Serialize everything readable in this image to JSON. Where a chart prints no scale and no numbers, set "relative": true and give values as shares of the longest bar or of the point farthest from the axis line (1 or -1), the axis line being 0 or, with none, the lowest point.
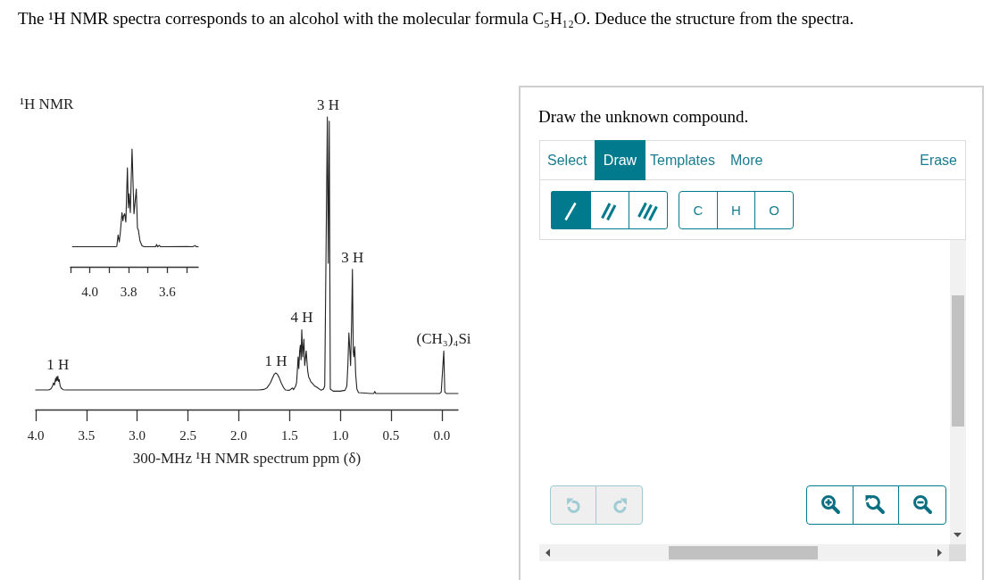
{
  "chart_data": [
    {
      "type": "line",
      "title": "¹H NMR",
      "xlabel": "300-MHz ¹H NMR spectrum ppm (δ)",
      "relative": true,
      "color": "#222222",
      "marker": "none",
      "grid": false,
      "xlim": [
        4.0,
        -0.16
      ],
      "xticks": [
        {
          "value": 4,
          "label": "4.0"
        },
        {
          "value": 3.5,
          "label": "3.5"
        },
        {
          "value": 3,
          "label": "3.0"
        },
        {
          "value": 2.5,
          "label": "2.5"
        },
        {
          "value": 2,
          "label": "2.0"
        },
        {
          "value": 1.5,
          "label": "1.5"
        },
        {
          "value": 1,
          "label": "1.0"
        },
        {
          "value": 0.5,
          "label": "0.5"
        },
        {
          "value": 0,
          "label": "0.0"
        }
      ],
      "x": [
        4.0,
        3.87,
        3.85,
        3.835,
        3.825,
        3.815,
        3.805,
        3.8,
        3.795,
        3.788,
        3.782,
        3.775,
        3.768,
        3.76,
        3.75,
        3.73,
        3.7,
        1.8,
        1.75,
        1.72,
        1.69,
        1.665,
        1.65,
        1.635,
        1.62,
        1.6,
        1.58,
        1.56,
        1.54,
        1.5,
        1.47,
        1.46,
        1.44,
        1.43,
        1.425,
        1.415,
        1.408,
        1.4,
        1.393,
        1.386,
        1.379,
        1.37,
        1.358,
        1.35,
        1.335,
        1.325,
        1.32,
        1.31,
        1.3,
        1.29,
        1.276,
        1.25,
        1.23,
        1.188,
        1.165,
        1.153,
        1.127,
        1.118,
        1.108,
        1.098,
        1.07,
        1.0,
        0.953,
        0.935,
        0.925,
        0.915,
        0.905,
        0.898,
        0.888,
        0.88,
        0.872,
        0.866,
        0.857,
        0.848,
        0.836,
        0.82,
        0.7,
        0.67,
        0.66,
        0.65,
        0.02,
        0.005,
        -0.02,
        -0.03,
        -0.045,
        -0.16
      ],
      "values": [
        0.067,
        0.067,
        0.071,
        0.08,
        0.091,
        0.084,
        0.106,
        0.097,
        0.112,
        0.099,
        0.114,
        0.096,
        0.102,
        0.082,
        0.074,
        0.068,
        0.067,
        0.067,
        0.069,
        0.075,
        0.09,
        0.11,
        0.121,
        0.125,
        0.121,
        0.108,
        0.09,
        0.076,
        0.067,
        0.066,
        0.074,
        0.068,
        0.08,
        0.092,
        0.12,
        0.18,
        0.14,
        0.2,
        0.22,
        0.17,
        0.273,
        0.18,
        0.241,
        0.15,
        0.2,
        0.15,
        0.13,
        0.11,
        0.104,
        0.095,
        0.09,
        0.08,
        0.076,
        0.066,
        0.07,
        0.08,
        1.0,
        0.5,
        0.985,
        0.07,
        0.063,
        0.063,
        0.066,
        0.08,
        0.15,
        0.262,
        0.2,
        0.15,
        0.3,
        0.479,
        0.2,
        0.18,
        0.215,
        0.12,
        0.07,
        0.058,
        0.055,
        0.055,
        0.062,
        0.055,
        0.055,
        0.06,
        0.2,
        0.06,
        0.055,
        0.055
      ],
      "annotations": [
        "The ¹H NMR spectra corresponds to an alcohol with the molecular formula C₅H₁₂O. Deduce the structure from the spectra.",
        {
          "text": "1 H",
          "x": 3.782,
          "y": 0.114
        },
        {
          "text": "1 H",
          "x": 1.635,
          "y": 0.125
        },
        {
          "text": "4 H",
          "x": 1.379,
          "y": 0.273
        },
        {
          "text": "3 H",
          "x": 1.12,
          "y": 1.0
        },
        {
          "text": "3 H",
          "x": 0.88,
          "y": 0.479
        },
        {
          "text": "(CH₃)₄Si",
          "x": -0.02,
          "y": 0.2
        }
      ]
    },
    {
      "type": "line",
      "relative": true,
      "color": "#222222",
      "marker": "none",
      "grid": false,
      "xlim": [
        4.1,
        3.44
      ],
      "xticks": [
        {
          "value": 4.1,
          "label": null
        },
        {
          "value": 4,
          "label": "4.0"
        },
        {
          "value": 3.9,
          "label": null
        },
        {
          "value": 3.8,
          "label": "3.8"
        },
        {
          "value": 3.7,
          "label": null
        },
        {
          "value": 3.6,
          "label": "3.6"
        },
        {
          "value": 3.5,
          "label": null
        }
      ],
      "x": [
        4.09,
        3.87,
        3.861,
        3.854,
        3.848,
        3.842,
        3.834,
        3.829,
        3.826,
        3.82,
        3.814,
        3.806,
        3.801,
        3.797,
        3.791,
        3.782,
        3.772,
        3.76,
        3.754,
        3.749,
        3.741,
        3.73,
        3.72,
        3.66,
        3.655,
        3.65,
        3.64,
        3.635,
        3.5,
        3.47,
        3.455,
        3.45,
        3.44
      ],
      "values": [
        0.17,
        0.17,
        0.172,
        0.27,
        0.21,
        0.3,
        0.46,
        0.39,
        0.43,
        0.45,
        0.38,
        0.84,
        0.5,
        0.62,
        0.46,
        1.0,
        0.45,
        0.66,
        0.33,
        0.31,
        0.22,
        0.178,
        0.17,
        0.17,
        0.19,
        0.17,
        0.182,
        0.17,
        0.172,
        0.17,
        0.18,
        0.17,
        0.17
      ]
    },
    {
      "type": "other",
      "title": "Draw the unknown compound.",
      "annotations": [
        "Select",
        "Draw",
        "Templates",
        "More",
        "Erase",
        "C",
        "H",
        "O"
      ]
    }
  ]
}
